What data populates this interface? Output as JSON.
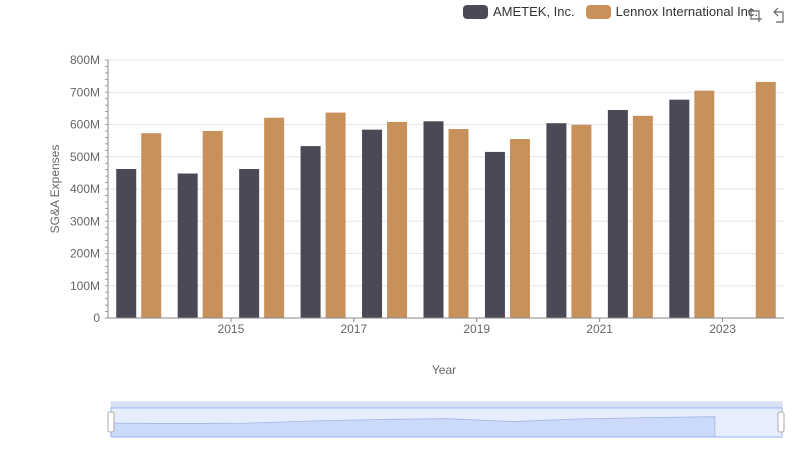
{
  "chart_data": {
    "type": "bar",
    "x": [
      2014,
      2015,
      2016,
      2017,
      2018,
      2019,
      2020,
      2021,
      2022,
      2023,
      2024
    ],
    "xtick_labels": [
      "2015",
      "2017",
      "2019",
      "2021",
      "2023"
    ],
    "xtick_values": [
      2015,
      2017,
      2019,
      2021,
      2023
    ],
    "xlabel": "Year",
    "ylabel": "SG&A Expenses",
    "ylim": [
      0,
      800000000
    ],
    "ytick_labels": [
      "0",
      "100M",
      "200M",
      "300M",
      "400M",
      "500M",
      "600M",
      "700M",
      "800M"
    ],
    "series": [
      {
        "name": "AMETEK, Inc.",
        "color": "#4a4a57",
        "values": [
          462000000,
          448000000,
          462000000,
          533000000,
          584000000,
          610000000,
          515000000,
          604000000,
          645000000,
          677000000,
          null
        ]
      },
      {
        "name": "Lennox International Inc.",
        "color": "#c8915c",
        "values": [
          573000000,
          580000000,
          621000000,
          637000000,
          608000000,
          586000000,
          555000000,
          599000000,
          627000000,
          705000000,
          732000000
        ]
      }
    ],
    "grid": true,
    "legend_position": "top-right"
  },
  "toolbar": {
    "zoom_icon": "zoom-icon",
    "restore_icon": "restore-icon"
  }
}
